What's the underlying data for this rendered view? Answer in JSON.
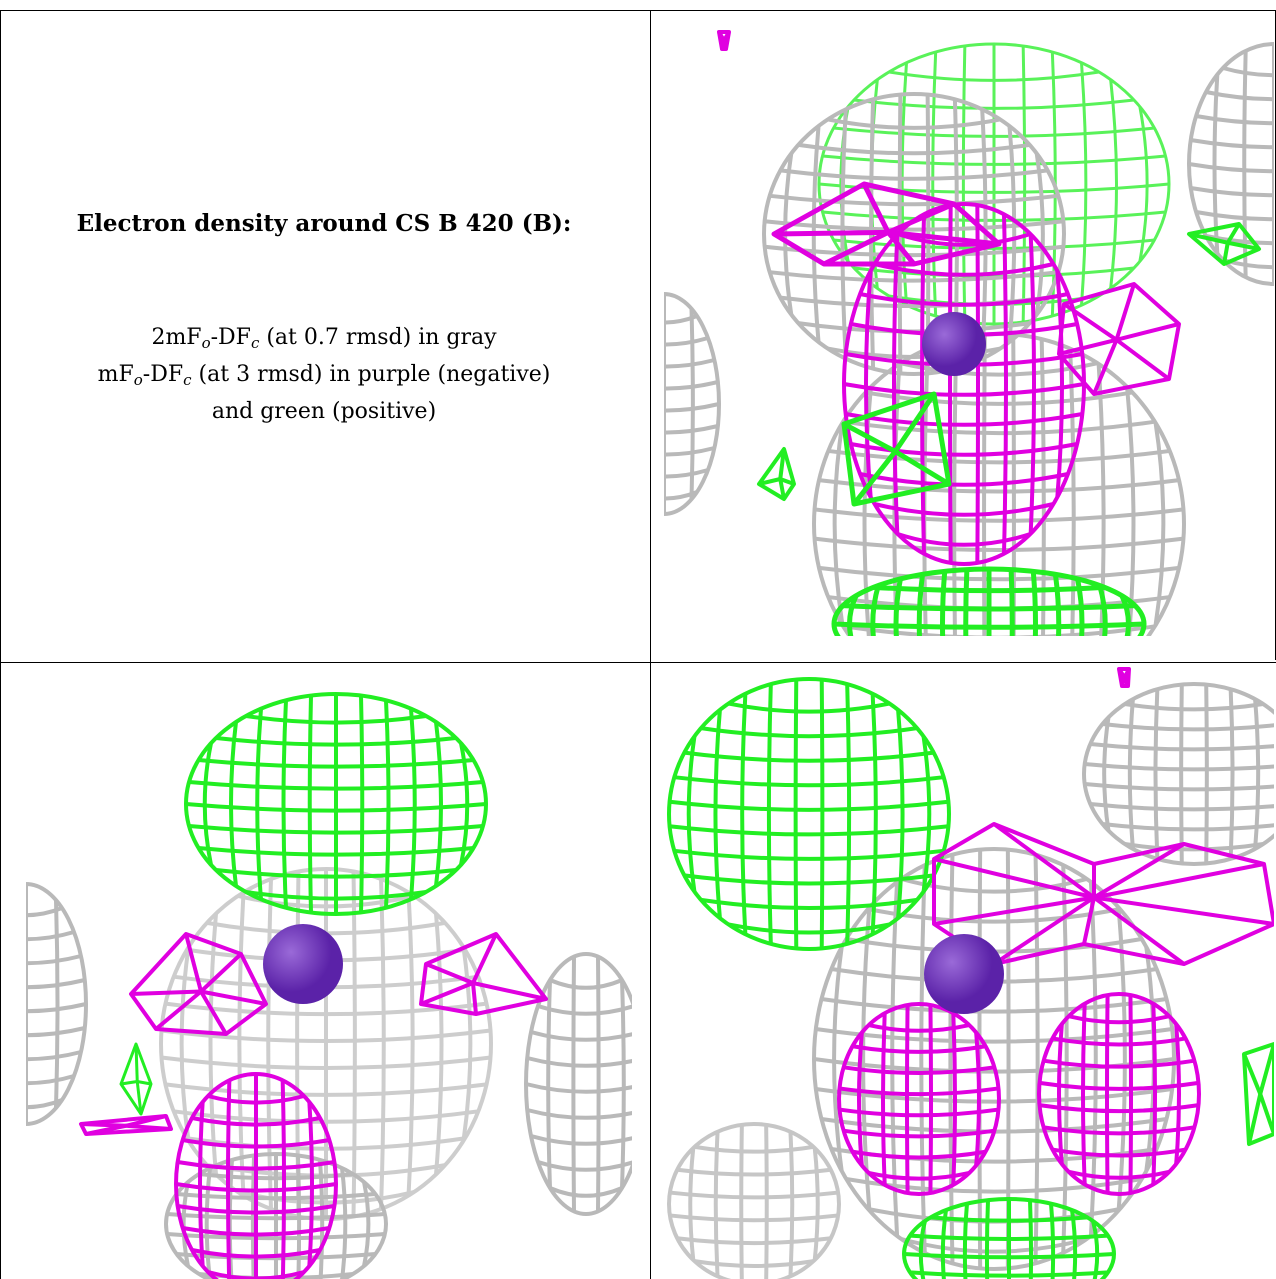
{
  "caption": {
    "title": "Electron density around CS B 420 (B):",
    "line1": {
      "pre": "2mF",
      "s1": "o",
      "mid": "-DF",
      "s2": "c",
      "post": " (at 0.7 rmsd) in gray"
    },
    "line2": {
      "pre": "mF",
      "s1": "o",
      "mid": "-DF",
      "s2": "c",
      "post": " (at 3 rmsd) in purple (negative)"
    },
    "line3": "and green (positive)"
  },
  "colors": {
    "gray_mesh": "#b9b9b9",
    "negative_mesh": "#e000e0",
    "positive_mesh": "#22ee22",
    "atom": "#5b22a8"
  },
  "panels": [
    {
      "id": "view-top-right"
    },
    {
      "id": "view-bottom-left"
    },
    {
      "id": "view-bottom-right"
    }
  ]
}
